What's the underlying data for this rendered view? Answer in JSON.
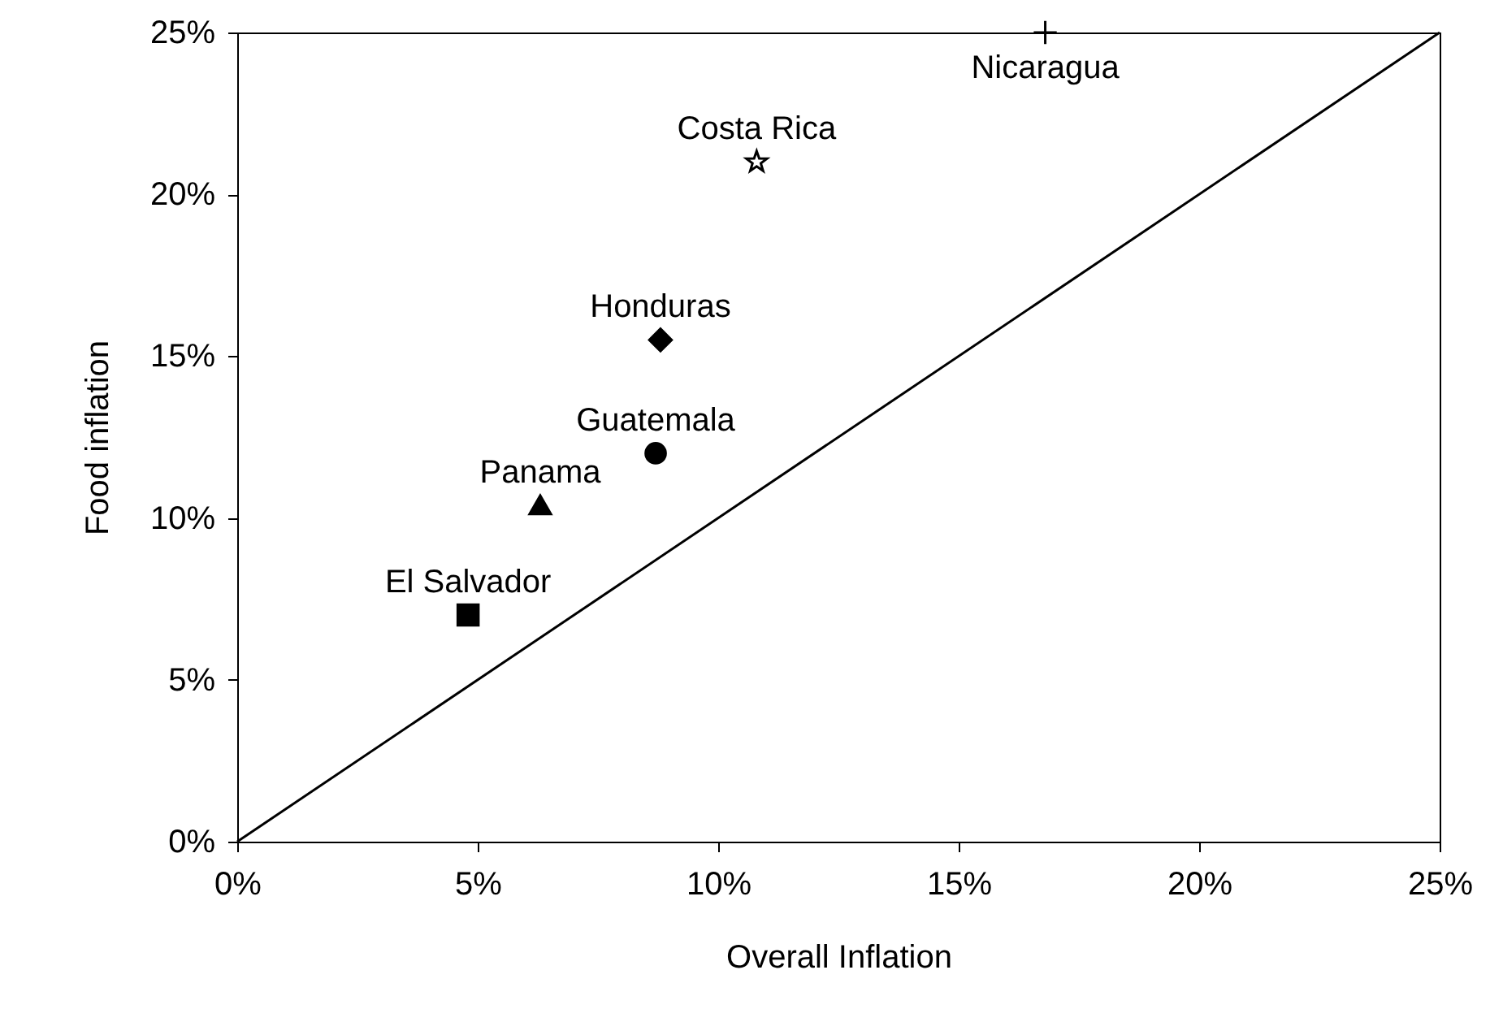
{
  "chart_data": {
    "type": "scatter",
    "xlabel": "Overall Inflation",
    "ylabel": "Food inflation",
    "xlim": [
      0,
      25
    ],
    "ylim": [
      0,
      25
    ],
    "xticks": [
      {
        "value": 0,
        "label": "0%"
      },
      {
        "value": 5,
        "label": "5%"
      },
      {
        "value": 10,
        "label": "10%"
      },
      {
        "value": 15,
        "label": "15%"
      },
      {
        "value": 20,
        "label": "20%"
      },
      {
        "value": 25,
        "label": "25%"
      }
    ],
    "yticks": [
      {
        "value": 0,
        "label": "0%"
      },
      {
        "value": 5,
        "label": "5%"
      },
      {
        "value": 10,
        "label": "10%"
      },
      {
        "value": 15,
        "label": "15%"
      },
      {
        "value": 20,
        "label": "20%"
      },
      {
        "value": 25,
        "label": "25%"
      }
    ],
    "grid": false,
    "series": [
      {
        "name": "El Salvador",
        "color": "#000000",
        "marker": "square",
        "x": [
          4.8
        ],
        "values": [
          7.0
        ]
      },
      {
        "name": "Panama",
        "color": "#000000",
        "marker": "triangle",
        "x": [
          6.3
        ],
        "values": [
          10.4
        ]
      },
      {
        "name": "Guatemala",
        "color": "#000000",
        "marker": "circle",
        "x": [
          8.7
        ],
        "values": [
          12.0
        ]
      },
      {
        "name": "Honduras",
        "color": "#000000",
        "marker": "diamond",
        "x": [
          8.8
        ],
        "values": [
          15.5
        ]
      },
      {
        "name": "Costa Rica",
        "color": "#000000",
        "marker": "star",
        "x": [
          10.8
        ],
        "values": [
          21.0
        ]
      },
      {
        "name": "Nicaragua",
        "color": "#000000",
        "marker": "cross",
        "x": [
          16.8
        ],
        "values": [
          25.0
        ]
      },
      {
        "type": "line",
        "color": "#000000",
        "marker": "none",
        "line_style": "solid",
        "x": [
          0,
          25
        ],
        "values": [
          0,
          25
        ]
      }
    ]
  }
}
